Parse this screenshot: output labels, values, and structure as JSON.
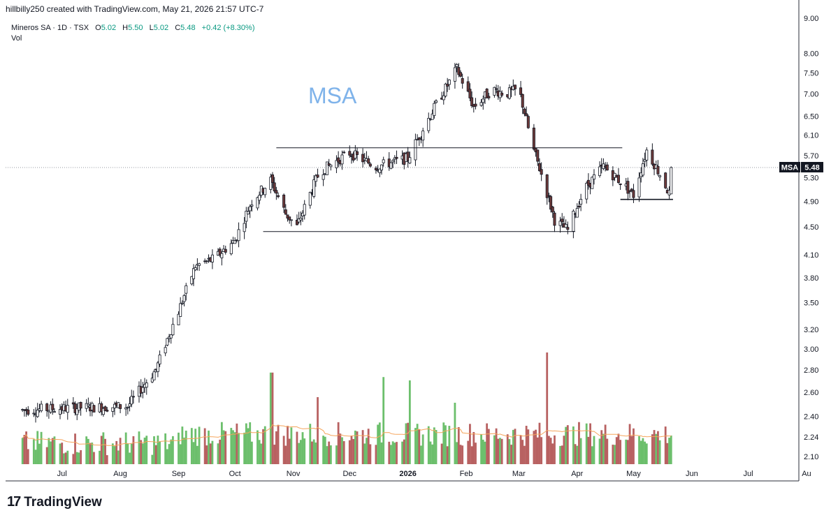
{
  "header": {
    "credit": "hillbilly250 created with TradingView.com, May 21, 2026 21:57 UTC-7"
  },
  "legend": {
    "symbol_line": "Mineros SA · 1D · TSX",
    "open_label": "O",
    "open": "5.02",
    "high_label": "H",
    "high": "5.50",
    "low_label": "L",
    "low": "5.02",
    "close_label": "C",
    "close": "5.48",
    "change": "+0.42 (+8.30%)",
    "vol_label": "Vol"
  },
  "annotation": {
    "text": "MSA",
    "color": "#7fb3ea"
  },
  "price_tag": {
    "symbol": "MSA",
    "value": "5.48"
  },
  "colors": {
    "up": "#089981",
    "down": "#f23645",
    "vol_up": "#5cb85c",
    "vol_down": "#b05050",
    "ma": "#f5a55c"
  },
  "footer": {
    "logo_mark": "17",
    "brand": "TradingView"
  },
  "chart_data": {
    "type": "candlestick",
    "y_axis": {
      "scale": "log",
      "ticks": [
        "9.00",
        "8.00",
        "7.50",
        "7.00",
        "6.50",
        "6.10",
        "5.70",
        "5.30",
        "4.90",
        "4.50",
        "4.10",
        "3.80",
        "3.50",
        "3.20",
        "3.00",
        "2.80",
        "2.60",
        "2.40",
        "2.24",
        "2.10"
      ]
    },
    "x_axis": {
      "ticks": [
        "Jul",
        "Aug",
        "Sep",
        "Oct",
        "Nov",
        "Dec",
        "2026",
        "Feb",
        "Mar",
        "Apr",
        "May",
        "Jun",
        "Jul",
        "Au"
      ]
    },
    "horizontal_lines": [
      {
        "name": "resistance",
        "value": 5.85,
        "from": "2025-10-23",
        "to": "2026-04-25"
      },
      {
        "name": "support",
        "value": 4.43,
        "from": "2025-10-16",
        "to": "2026-03-31"
      },
      {
        "name": "recent-support",
        "value": 4.93,
        "from": "2026-04-24",
        "to": "2026-05-22"
      }
    ],
    "last_price": 5.48,
    "price_anchors": [
      [
        "2025-06-10",
        2.45
      ],
      [
        "2025-07-10",
        2.47
      ],
      [
        "2025-08-05",
        2.48
      ],
      [
        "2025-08-20",
        2.8
      ],
      [
        "2025-09-01",
        3.4
      ],
      [
        "2025-09-10",
        3.95
      ],
      [
        "2025-09-20",
        4.05
      ],
      [
        "2025-10-01",
        4.3
      ],
      [
        "2025-10-10",
        4.9
      ],
      [
        "2025-10-20",
        5.25
      ],
      [
        "2025-10-28",
        4.7
      ],
      [
        "2025-11-03",
        4.5
      ],
      [
        "2025-11-15",
        5.4
      ],
      [
        "2025-12-01",
        5.75
      ],
      [
        "2025-12-15",
        5.5
      ],
      [
        "2026-01-01",
        5.65
      ],
      [
        "2026-01-10",
        6.3
      ],
      [
        "2026-01-22",
        7.2
      ],
      [
        "2026-01-27",
        7.6
      ],
      [
        "2026-02-05",
        6.7
      ],
      [
        "2026-02-15",
        7.1
      ],
      [
        "2026-02-22",
        7.0
      ],
      [
        "2026-03-01",
        7.1
      ],
      [
        "2026-03-08",
        5.9
      ],
      [
        "2026-03-20",
        4.6
      ],
      [
        "2026-03-27",
        4.45
      ],
      [
        "2026-04-05",
        5.1
      ],
      [
        "2026-04-15",
        5.5
      ],
      [
        "2026-04-25",
        5.2
      ],
      [
        "2026-05-01",
        5.0
      ],
      [
        "2026-05-08",
        5.8
      ],
      [
        "2026-05-16",
        5.3
      ],
      [
        "2026-05-20",
        5.02
      ],
      [
        "2026-05-21",
        5.48
      ]
    ],
    "volume_spikes": [
      [
        "2025-10-20",
        0.82
      ],
      [
        "2025-12-20",
        0.78
      ],
      [
        "2026-01-03",
        0.75
      ],
      [
        "2026-03-15",
        1.0
      ],
      [
        "2025-11-15",
        0.6
      ],
      [
        "2026-01-25",
        0.55
      ]
    ]
  }
}
